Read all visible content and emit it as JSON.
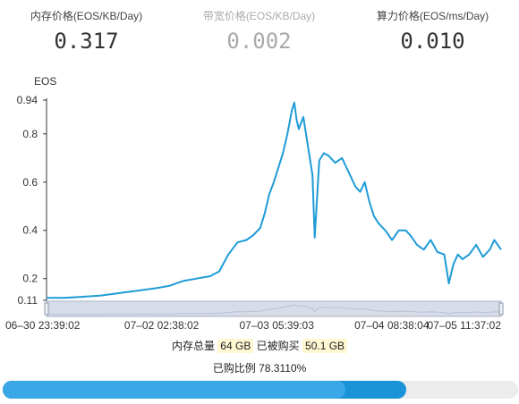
{
  "prices": [
    {
      "label": "内存价格(EOS/KB/Day)",
      "value": "0.317"
    },
    {
      "label": "带宽价格(EOS/KB/Day)",
      "value": "0.002"
    },
    {
      "label": "算力价格(EOS/ms/Day)",
      "value": "0.010"
    }
  ],
  "stats": {
    "total_label": "内存总量",
    "total_value": "64 GB",
    "bought_label": "已被购买",
    "bought_value": "50.1 GB",
    "ratio_label": "已购比例",
    "ratio_value": "78.3110%",
    "ratio_fraction": 0.78311,
    "inner_fill_fraction": 0.665
  },
  "colors": {
    "line": "#1e9bd7",
    "progress": "#1a93d9",
    "progress_light": "#3aa7e6"
  },
  "chart_data": {
    "type": "line",
    "ylabel": "EOS",
    "ylim": [
      0.11,
      0.94
    ],
    "ytick_labels": [
      "0.94",
      "0.8",
      "0.6",
      "0.4",
      "0.2",
      "0.11"
    ],
    "yticks": [
      0.94,
      0.8,
      0.6,
      0.4,
      0.2,
      0.11
    ],
    "x_tick_labels": [
      "06–30 23:39:02",
      "07–02 02:38:02",
      "07–03 05:39:03",
      "07–04 08:38:04",
      "07–05 11:37:02"
    ],
    "x_tick_fraction": [
      0.0,
      0.2532,
      0.5063,
      0.7595,
      1.0
    ],
    "grid": false,
    "series": [
      {
        "x_fraction": [
          0,
          0.04,
          0.08,
          0.12,
          0.16,
          0.2,
          0.24,
          0.27,
          0.3,
          0.33,
          0.36,
          0.38,
          0.4,
          0.42,
          0.44,
          0.455,
          0.47,
          0.48,
          0.49,
          0.5,
          0.51,
          0.52,
          0.53,
          0.54,
          0.545,
          0.55,
          0.555,
          0.565,
          0.575,
          0.585,
          0.59,
          0.6,
          0.61,
          0.62,
          0.635,
          0.65,
          0.665,
          0.68,
          0.69,
          0.7,
          0.71,
          0.72,
          0.73,
          0.745,
          0.76,
          0.775,
          0.79,
          0.8,
          0.815,
          0.83,
          0.845,
          0.86,
          0.875,
          0.885,
          0.895,
          0.905,
          0.915,
          0.93,
          0.945,
          0.96,
          0.975,
          0.985,
          1.0
        ],
        "values": [
          0.12,
          0.12,
          0.125,
          0.13,
          0.14,
          0.15,
          0.16,
          0.17,
          0.19,
          0.2,
          0.21,
          0.23,
          0.3,
          0.35,
          0.36,
          0.38,
          0.41,
          0.47,
          0.55,
          0.6,
          0.66,
          0.72,
          0.8,
          0.9,
          0.93,
          0.86,
          0.82,
          0.87,
          0.75,
          0.63,
          0.37,
          0.69,
          0.72,
          0.71,
          0.68,
          0.7,
          0.64,
          0.58,
          0.56,
          0.6,
          0.52,
          0.46,
          0.43,
          0.4,
          0.36,
          0.4,
          0.4,
          0.38,
          0.34,
          0.32,
          0.36,
          0.31,
          0.3,
          0.18,
          0.26,
          0.3,
          0.28,
          0.3,
          0.34,
          0.29,
          0.32,
          0.36,
          0.32
        ]
      }
    ]
  }
}
